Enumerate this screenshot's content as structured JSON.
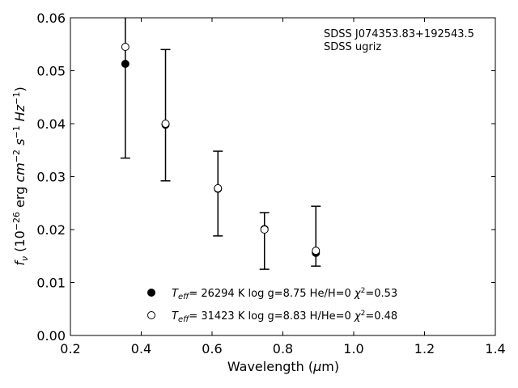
{
  "chart_data": {
    "type": "scatter",
    "xlabel": "Wavelength (μm)",
    "ylabel": "f_ν (10^-26 erg cm^-2 s^-1 Hz^-1)",
    "xlim": [
      0.2,
      1.4
    ],
    "ylim": [
      0.0,
      0.06
    ],
    "x_ticks": [
      0.2,
      0.4,
      0.6,
      0.8,
      1.0,
      1.2,
      1.4
    ],
    "y_ticks": [
      0.0,
      0.01,
      0.02,
      0.03,
      0.04,
      0.05,
      0.06
    ],
    "x_tick_labels": [
      "0.2",
      "0.4",
      "0.6",
      "0.8",
      "1.0",
      "1.2",
      "1.4"
    ],
    "y_tick_labels": [
      "0.00",
      "0.01",
      "0.02",
      "0.03",
      "0.04",
      "0.05",
      "0.06"
    ],
    "grid": false,
    "annotations": [
      "SDSS J074353.83+192543.5",
      "SDSS ugriz"
    ],
    "observed": {
      "x": [
        0.3551,
        0.4686,
        0.6166,
        0.748,
        0.8932
      ],
      "y": [
        0.0513,
        0.0398,
        0.0277,
        0.0201,
        0.0156
      ],
      "err_low": [
        0.0335,
        0.0292,
        0.0188,
        0.0125,
        0.0131
      ],
      "err_high": [
        0.065,
        0.054,
        0.0348,
        0.0232,
        0.0244
      ]
    },
    "series": [
      {
        "marker": "filled",
        "label": "T_eff= 26294 K  log g=8.75  He/H=0  χ²=0.53",
        "x": [
          0.3551,
          0.4686,
          0.6166,
          0.748,
          0.8932
        ],
        "y": [
          0.0513,
          0.0398,
          0.0277,
          0.0201,
          0.0156
        ]
      },
      {
        "marker": "open",
        "label": "T_eff= 31423 K  log g=8.83  H/He=0  χ²=0.48",
        "x": [
          0.3551,
          0.4686,
          0.6166,
          0.748,
          0.8932
        ],
        "y": [
          0.0545,
          0.04,
          0.0278,
          0.02,
          0.016
        ]
      }
    ],
    "legend_position": "lower-center"
  }
}
